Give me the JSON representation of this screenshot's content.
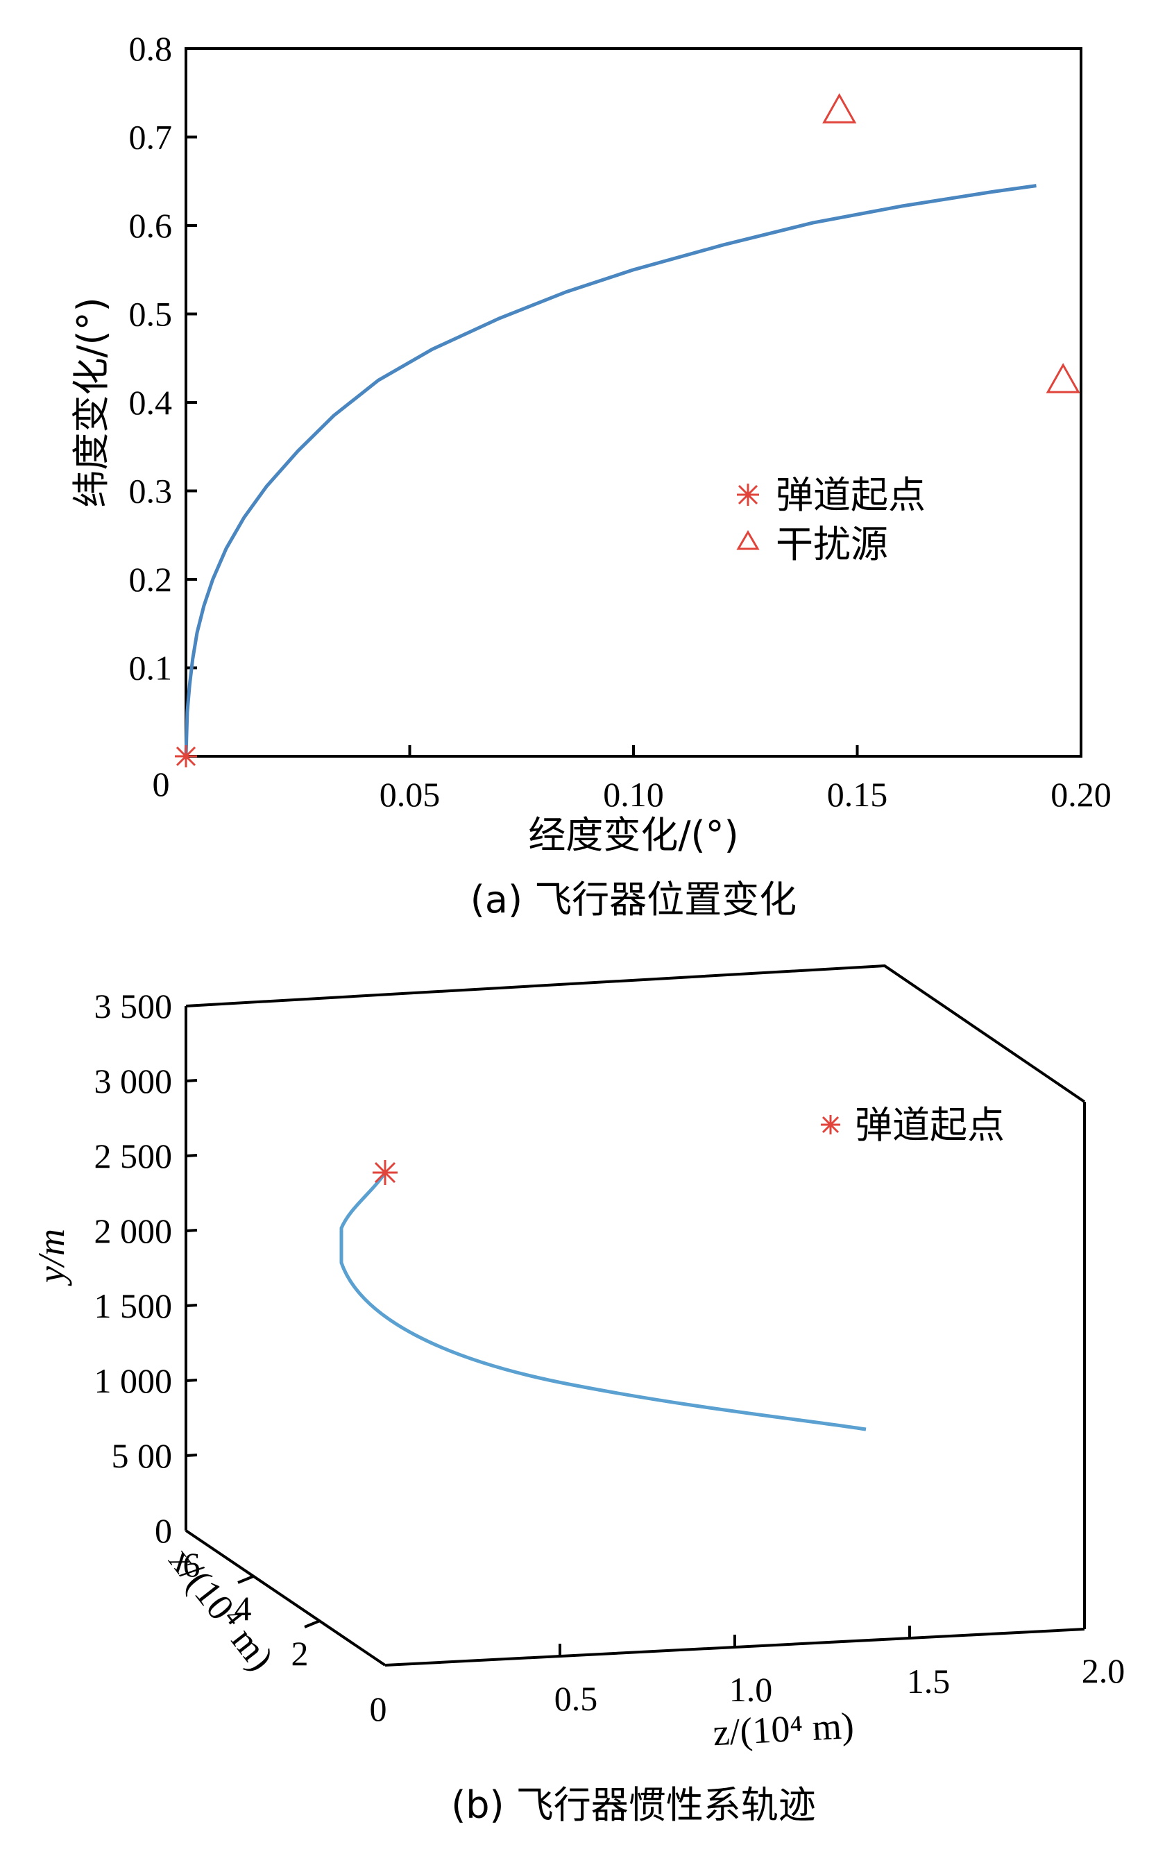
{
  "figure_a": {
    "caption": "(a) 飞行器位置变化",
    "chart_data": {
      "type": "line",
      "xlabel": "经度变化/(°)",
      "ylabel": "纬度变化/(°)",
      "xlim": [
        0,
        0.2
      ],
      "ylim": [
        0,
        0.8
      ],
      "x_ticks": [
        0,
        0.05,
        0.1,
        0.15,
        0.2
      ],
      "x_tick_labels": [
        "0",
        "0.05",
        "0.10",
        "0.15",
        "0.20"
      ],
      "y_ticks": [
        0.1,
        0.2,
        0.3,
        0.4,
        0.5,
        0.6,
        0.7,
        0.8
      ],
      "y_tick_labels": [
        "0.1",
        "0.2",
        "0.3",
        "0.4",
        "0.5",
        "0.6",
        "0.7",
        "0.8"
      ],
      "series": [
        {
          "kind": "line",
          "color": "#4a86c0",
          "x": [
            0.0,
            0.0003,
            0.0008,
            0.0015,
            0.0025,
            0.004,
            0.006,
            0.009,
            0.013,
            0.018,
            0.025,
            0.033,
            0.043,
            0.055,
            0.07,
            0.085,
            0.1,
            0.12,
            0.14,
            0.16,
            0.18,
            0.19
          ],
          "y": [
            0.0,
            0.05,
            0.08,
            0.11,
            0.14,
            0.17,
            0.2,
            0.235,
            0.27,
            0.305,
            0.345,
            0.385,
            0.425,
            0.46,
            0.495,
            0.525,
            0.55,
            0.578,
            0.603,
            0.622,
            0.638,
            0.645
          ]
        },
        {
          "kind": "marker",
          "name": "弹道起点",
          "marker": "asterisk",
          "color": "#e0443b",
          "x": [
            0.0
          ],
          "y": [
            0.0
          ]
        },
        {
          "kind": "marker",
          "name": "干扰源",
          "marker": "triangle",
          "color": "#e0443b",
          "x": [
            0.146,
            0.196
          ],
          "y": [
            0.73,
            0.425
          ]
        }
      ],
      "legend_position": "center-right"
    }
  },
  "figure_b": {
    "caption": "(b) 飞行器惯性系轨迹",
    "chart_data": {
      "type": "line",
      "projection": "3d",
      "xlabel": "x/(10⁴ m)",
      "ylabel": "y/m",
      "zlabel": "z/(10⁴ m)",
      "y_ticks": [
        0,
        500,
        1000,
        1500,
        2000,
        2500,
        3000,
        3500
      ],
      "y_tick_labels": [
        "0",
        "5 00",
        "1 000",
        "1 500",
        "2 000",
        "2 500",
        "3 000",
        "3 500"
      ],
      "x_tick_labels": [
        "2",
        "4",
        "6"
      ],
      "z_tick_labels": [
        "0",
        "0.5",
        "1.0",
        "1.5",
        "2.0"
      ],
      "series": [
        {
          "kind": "line",
          "color": "#5aa0d0",
          "description_points": "trajectory"
        },
        {
          "kind": "marker",
          "name": "弹道起点",
          "marker": "asterisk",
          "color": "#e0443b"
        }
      ],
      "legend_position": "top-right"
    }
  }
}
